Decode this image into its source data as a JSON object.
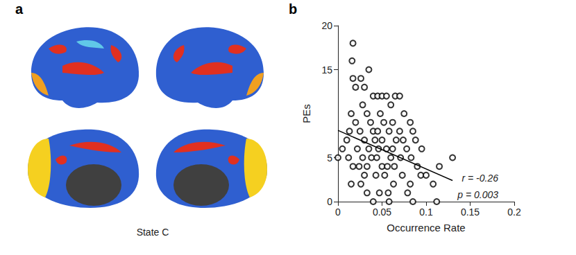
{
  "panel_labels": [
    "a",
    "b"
  ],
  "brain_caption": "State C",
  "chart_data": {
    "type": "scatter",
    "x_label": "Occurrence Rate",
    "y_label": "PEs",
    "annotations": [
      "r = -0.26",
      "p = 0.003"
    ],
    "xlim": [
      0,
      0.2
    ],
    "xticks": [
      0,
      0.05,
      0.1,
      0.15,
      0.2
    ],
    "ylim": [
      0,
      20
    ],
    "yticks": [
      0,
      5,
      15,
      20
    ],
    "grid": false,
    "series": [
      {
        "type": "scatter",
        "color": "#000000",
        "marker": "circle-open",
        "x": [
          0.017,
          0.016,
          0.035,
          0.017,
          0.026,
          0.02,
          0.03,
          0.04,
          0.045,
          0.05,
          0.055,
          0.065,
          0.07,
          0.028,
          0.06,
          0.015,
          0.033,
          0.048,
          0.075,
          0.02,
          0.037,
          0.052,
          0.062,
          0.082,
          0.013,
          0.025,
          0.04,
          0.045,
          0.058,
          0.07,
          0.085,
          0.01,
          0.03,
          0.042,
          0.05,
          0.066,
          0.074,
          0.088,
          0.005,
          0.022,
          0.035,
          0.046,
          0.055,
          0.062,
          0.078,
          0.095,
          0.0,
          0.012,
          0.028,
          0.038,
          0.044,
          0.06,
          0.071,
          0.083,
          0.13,
          0.017,
          0.024,
          0.033,
          0.05,
          0.056,
          0.064,
          0.09,
          0.115,
          0.03,
          0.043,
          0.053,
          0.073,
          0.094,
          0.1,
          0.015,
          0.026,
          0.063,
          0.082,
          0.108,
          0.033,
          0.047,
          0.057,
          0.079,
          0.04,
          0.058,
          0.085,
          0.112
        ],
        "values": [
          18,
          16,
          15,
          14,
          14,
          13,
          13,
          12,
          12,
          12,
          12,
          12,
          12,
          11,
          11,
          10,
          10,
          10,
          10,
          9,
          9,
          9,
          9,
          9,
          8,
          8,
          8,
          8,
          8,
          8,
          8,
          7,
          7,
          7,
          7,
          7,
          7,
          7,
          6,
          6,
          6,
          6,
          6,
          6,
          6,
          6,
          5,
          5,
          5,
          5,
          5,
          5,
          5,
          5,
          5,
          4,
          4,
          4,
          4,
          4,
          4,
          4,
          4,
          3,
          3,
          3,
          3,
          3,
          3,
          2,
          2,
          2,
          2,
          2,
          1,
          1,
          1,
          1,
          0,
          0,
          0,
          0
        ]
      },
      {
        "type": "line",
        "color": "#000000",
        "line_style": "solid",
        "x": [
          0,
          0.13
        ],
        "values": [
          8.1,
          2.4
        ]
      }
    ]
  }
}
